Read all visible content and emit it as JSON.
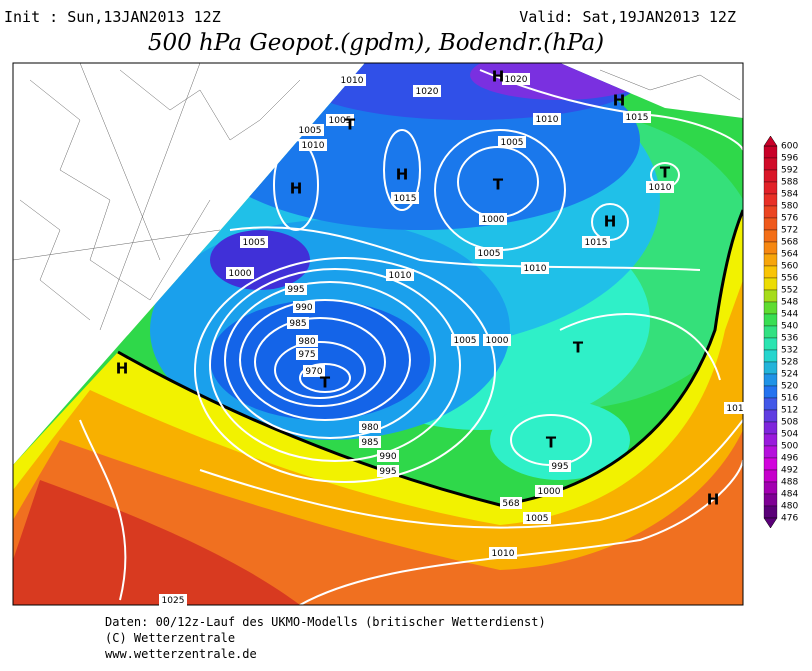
{
  "header": {
    "init": "Init : Sun,13JAN2013 12Z",
    "valid": "Valid: Sat,19JAN2013 12Z",
    "title": "500 hPa Geopot.(gpdm), Bodendr.(hPa)"
  },
  "map": {
    "pressure_labels": [
      "1010",
      "1005",
      "1005",
      "1010",
      "1020",
      "1020",
      "1010",
      "1015",
      "1005",
      "1010",
      "1015",
      "1000",
      "1015",
      "1005",
      "1005",
      "1010",
      "1000",
      "1010",
      "995",
      "990",
      "985",
      "980",
      "975",
      "970",
      "1005",
      "1000",
      "980",
      "985",
      "990",
      "995",
      "995",
      "1000",
      "568",
      "1005",
      "1010",
      "1025",
      "101"
    ],
    "centers": [
      "H",
      "H",
      "T",
      "H",
      "H",
      "T",
      "T",
      "H",
      "T",
      "T",
      "T",
      "H",
      "H"
    ]
  },
  "colorbar": {
    "labels": [
      600,
      596,
      592,
      588,
      584,
      580,
      576,
      572,
      568,
      564,
      560,
      556,
      552,
      548,
      544,
      540,
      536,
      532,
      528,
      524,
      520,
      516,
      512,
      508,
      504,
      500,
      496,
      492,
      488,
      484,
      480,
      476
    ]
  },
  "footer": [
    "Daten: 00/12z-Lauf des UKMO-Modells (britischer Wetterdienst)",
    "(C) Wetterzentrale",
    "www.wetterzentrale.de"
  ]
}
